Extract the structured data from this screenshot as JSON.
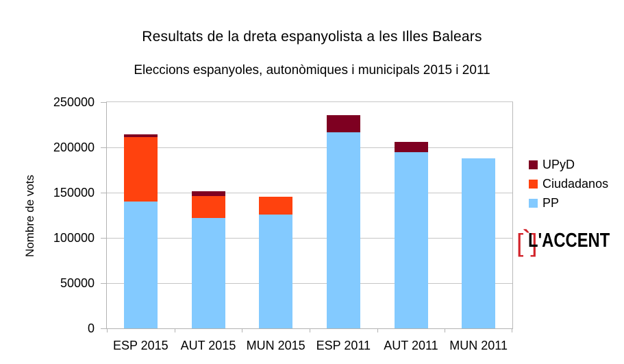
{
  "header": {
    "title": "Resultats de la dreta espanyolista a les Illes Balears",
    "subtitle": "Eleccions espanyoles, autonòmiques i municipals 2015 i 2011"
  },
  "chart_data": {
    "type": "bar",
    "stacked": true,
    "title": "Resultats de la dreta espanyolista a les Illes Balears",
    "subtitle": "Eleccions espanyoles, autonòmiques i municipals 2015 i 2011",
    "xlabel": "",
    "ylabel": "Nombre de vots",
    "categories": [
      "ESP 2015",
      "AUT 2015",
      "MUN 2015",
      "ESP 2011",
      "AUT 2011",
      "MUN 2011"
    ],
    "series": [
      {
        "name": "PP",
        "color": "#83CAFF",
        "values": [
          140000,
          122000,
          126000,
          217000,
          195000,
          188000
        ]
      },
      {
        "name": "Ciudadanos",
        "color": "#FF420E",
        "values": [
          71000,
          24000,
          20000,
          0,
          0,
          0
        ]
      },
      {
        "name": "UPyD",
        "color": "#7E0021",
        "values": [
          3000,
          5000,
          0,
          19000,
          11000,
          0
        ]
      }
    ],
    "stack_totals": [
      214000,
      151000,
      146000,
      236000,
      206000,
      188000
    ],
    "ylim": [
      0,
      250000
    ],
    "yticks": [
      0,
      50000,
      100000,
      150000,
      200000,
      250000
    ],
    "grid": true,
    "legend_position": "right",
    "legend_order_top_to_bottom": [
      "UPyD",
      "Ciudadanos",
      "PP"
    ]
  },
  "legend": {
    "items": [
      {
        "label": "UPyD",
        "color": "#7E0021"
      },
      {
        "label": "Ciudadanos",
        "color": "#FF420E"
      },
      {
        "label": "PP",
        "color": "#83CAFF"
      }
    ]
  },
  "logo": {
    "bracket_left": "[",
    "grave_accent": "`",
    "bracket_right": "]",
    "text": "L'ACCENT",
    "red": "#D2232A",
    "text_color": "#000000"
  },
  "colors": {
    "background": "#FFFFFF",
    "grid": "#C6C6C6",
    "axis": "#B3B3B3",
    "text": "#000000"
  }
}
